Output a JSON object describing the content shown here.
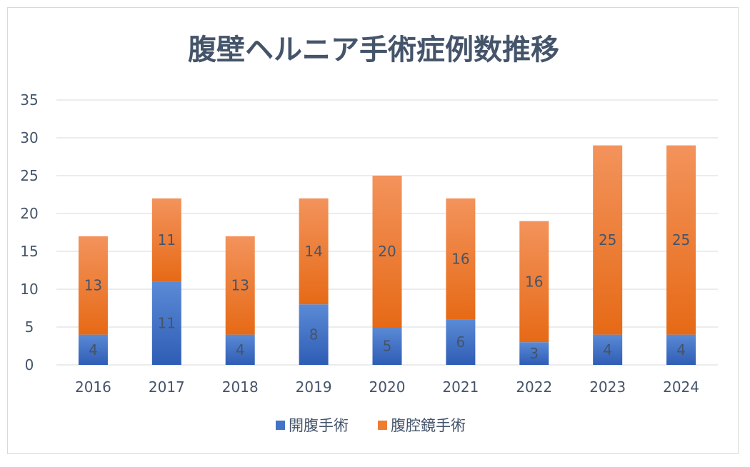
{
  "chart_data": {
    "type": "bar",
    "stacked": true,
    "title": "腹壁ヘルニア手術症例数推移",
    "categories": [
      "2016",
      "2017",
      "2018",
      "2019",
      "2020",
      "2021",
      "2022",
      "2023",
      "2024"
    ],
    "series": [
      {
        "name": "開腹手術",
        "values": [
          4,
          11,
          4,
          8,
          5,
          6,
          3,
          4,
          4
        ],
        "color": "#4472c4"
      },
      {
        "name": "腹腔鏡手術",
        "values": [
          13,
          11,
          13,
          14,
          20,
          16,
          16,
          25,
          25
        ],
        "color": "#ed7d31"
      }
    ],
    "ylim": [
      0,
      35
    ],
    "yticks": [
      "0",
      "5",
      "10",
      "15",
      "20",
      "25",
      "30",
      "35"
    ],
    "grid": true,
    "legend_position": "bottom",
    "data_labels": true
  }
}
